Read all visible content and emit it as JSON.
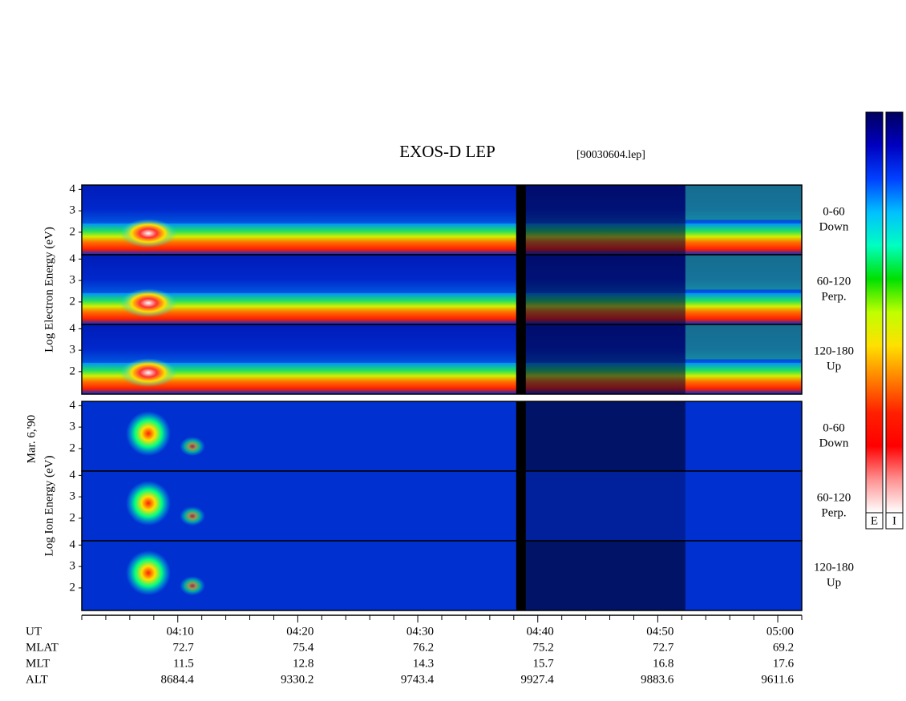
{
  "chart_data": {
    "type": "spectrogram",
    "title": "EXOS-D LEP",
    "file_label": "[90030604.lep]",
    "date_label": "Mar. 6,'90",
    "groups": [
      {
        "label": "Log Electron Energy (eV)",
        "panels": [
          {
            "pitch_angle": "0-60",
            "direction": "Down",
            "ylim": [
              0.95,
              4.2
            ],
            "yticks": [
              2,
              3,
              4
            ]
          },
          {
            "pitch_angle": "60-120",
            "direction": "Perp.",
            "ylim": [
              0.95,
              4.2
            ],
            "yticks": [
              2,
              3,
              4
            ]
          },
          {
            "pitch_angle": "120-180",
            "direction": "Up",
            "ylim": [
              0.95,
              4.2
            ],
            "yticks": [
              2,
              3,
              4
            ]
          }
        ]
      },
      {
        "label": "Log Ion Energy (eV)",
        "panels": [
          {
            "pitch_angle": "0-60",
            "direction": "Down",
            "ylim": [
              0.95,
              4.2
            ],
            "yticks": [
              2,
              3,
              4
            ]
          },
          {
            "pitch_angle": "60-120",
            "direction": "Perp.",
            "ylim": [
              0.95,
              4.2
            ],
            "yticks": [
              2,
              3,
              4
            ]
          },
          {
            "pitch_angle": "120-180",
            "direction": "Up",
            "ylim": [
              0.95,
              4.2
            ],
            "yticks": [
              2,
              3,
              4
            ]
          }
        ]
      }
    ],
    "xlim": [
      2,
      62
    ],
    "xticks": [
      {
        "value": 10,
        "label": "04:10"
      },
      {
        "value": 20,
        "label": "04:20"
      },
      {
        "value": 30,
        "label": "04:30"
      },
      {
        "value": 40,
        "label": "04:40"
      },
      {
        "value": 50,
        "label": "04:50"
      },
      {
        "value": 60,
        "label": "05:00"
      }
    ],
    "xminorticks": [
      2,
      4,
      6,
      8,
      12,
      14,
      16,
      18,
      22,
      24,
      26,
      28,
      32,
      34,
      36,
      38,
      42,
      44,
      46,
      48,
      52,
      54,
      56,
      58,
      62
    ],
    "ephemeris": {
      "ut_label": "UT",
      "rows": [
        {
          "name": "MLAT",
          "values": [
            72.7,
            75.4,
            76.2,
            75.2,
            72.7,
            69.2
          ]
        },
        {
          "name": "MLT",
          "values": [
            11.5,
            12.8,
            14.3,
            15.7,
            16.8,
            17.6
          ]
        },
        {
          "name": "ALT",
          "values": [
            8684.4,
            9330.2,
            9743.4,
            9927.4,
            9883.6,
            9611.6
          ]
        }
      ]
    },
    "colormap": [
      "#000060",
      "#0000c0",
      "#0040ff",
      "#00c0ff",
      "#00ffc0",
      "#00e000",
      "#c0ff00",
      "#ffe000",
      "#ff8000",
      "#ff2000",
      "#ff0000",
      "#ff9090",
      "#ffffff"
    ],
    "colorbar_labels": [
      "E",
      "I"
    ]
  }
}
